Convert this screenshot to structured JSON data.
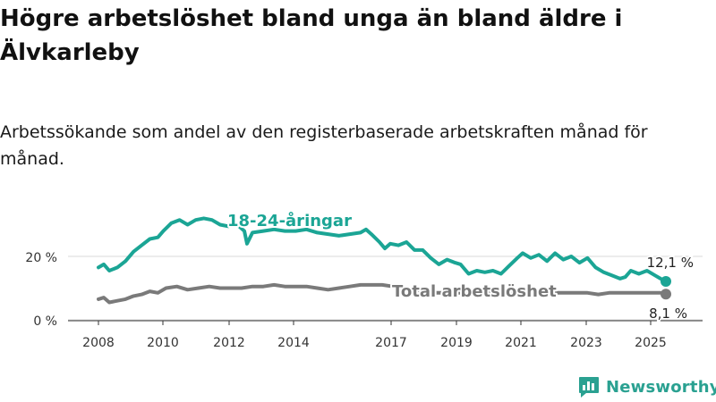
{
  "title": "Högre arbetslöshet bland unga än bland äldre i Älvkarleby",
  "subtitle": "Arbetssökande som andel av den registerbaserade arbetskraften månad för månad.",
  "brand": {
    "name": "Newsworthy",
    "icon": "newsworthy-bar-chart-icon"
  },
  "colors": {
    "youth": "#1ba595",
    "total": "#7a7a7a",
    "grid": "#d9d9d9",
    "brand": "#2aa191"
  },
  "chart_data": {
    "type": "line",
    "title": "Högre arbetslöshet bland unga än bland äldre i Älvkarleby",
    "subtitle": "Arbetssökande som andel av den registerbaserade arbetskraften månad för månad.",
    "xlabel": "",
    "ylabel": "",
    "x_ticks": [
      "2008",
      "2010",
      "2012",
      "2014",
      "2017",
      "2019",
      "2021",
      "2023",
      "2025"
    ],
    "y_ticks": [
      "0 %",
      "20 %"
    ],
    "xlim": [
      "2008-01",
      "2025-12"
    ],
    "ylim": [
      0,
      35
    ],
    "grid": true,
    "series": [
      {
        "name": "18-24-åringar",
        "color": "#1ba595",
        "end_label": "12,1 %",
        "end_value": 12.1,
        "points": [
          [
            "2008-01",
            16.5
          ],
          [
            "2008-03",
            17.5
          ],
          [
            "2008-05",
            15.5
          ],
          [
            "2008-08",
            16.5
          ],
          [
            "2008-11",
            18.5
          ],
          [
            "2009-02",
            21.5
          ],
          [
            "2009-05",
            23.5
          ],
          [
            "2009-08",
            25.5
          ],
          [
            "2009-11",
            26.0
          ],
          [
            "2010-01",
            28.0
          ],
          [
            "2010-04",
            30.5
          ],
          [
            "2010-07",
            31.5
          ],
          [
            "2010-10",
            30.0
          ],
          [
            "2011-01",
            31.5
          ],
          [
            "2011-04",
            32.0
          ],
          [
            "2011-07",
            31.5
          ],
          [
            "2011-10",
            30.0
          ],
          [
            "2012-01",
            29.5
          ],
          [
            "2012-03",
            30.0
          ],
          [
            "2012-05",
            29.5
          ],
          [
            "2012-07",
            28.0
          ],
          [
            "2012-08",
            24.0
          ],
          [
            "2012-10",
            27.5
          ],
          [
            "2013-02",
            28.0
          ],
          [
            "2013-06",
            28.5
          ],
          [
            "2013-10",
            28.0
          ],
          [
            "2014-02",
            28.0
          ],
          [
            "2014-06",
            28.5
          ],
          [
            "2014-10",
            27.5
          ],
          [
            "2015-02",
            27.0
          ],
          [
            "2015-06",
            26.5
          ],
          [
            "2015-10",
            27.0
          ],
          [
            "2016-02",
            27.5
          ],
          [
            "2016-04",
            28.5
          ],
          [
            "2016-06",
            27.0
          ],
          [
            "2016-09",
            24.5
          ],
          [
            "2016-11",
            22.5
          ],
          [
            "2017-01",
            24.0
          ],
          [
            "2017-04",
            23.5
          ],
          [
            "2017-07",
            24.5
          ],
          [
            "2017-10",
            22.0
          ],
          [
            "2018-01",
            22.0
          ],
          [
            "2018-04",
            19.5
          ],
          [
            "2018-07",
            17.5
          ],
          [
            "2018-10",
            19.0
          ],
          [
            "2019-01",
            18.0
          ],
          [
            "2019-03",
            17.5
          ],
          [
            "2019-06",
            14.5
          ],
          [
            "2019-09",
            15.5
          ],
          [
            "2019-12",
            15.0
          ],
          [
            "2020-03",
            15.5
          ],
          [
            "2020-06",
            14.5
          ],
          [
            "2020-09",
            17.0
          ],
          [
            "2020-12",
            19.5
          ],
          [
            "2021-02",
            21.0
          ],
          [
            "2021-05",
            19.5
          ],
          [
            "2021-08",
            20.5
          ],
          [
            "2021-11",
            18.5
          ],
          [
            "2022-02",
            21.0
          ],
          [
            "2022-05",
            19.0
          ],
          [
            "2022-08",
            20.0
          ],
          [
            "2022-11",
            18.0
          ],
          [
            "2023-02",
            19.5
          ],
          [
            "2023-05",
            16.5
          ],
          [
            "2023-08",
            15.0
          ],
          [
            "2023-11",
            14.0
          ],
          [
            "2024-02",
            13.0
          ],
          [
            "2024-04",
            13.5
          ],
          [
            "2024-06",
            15.5
          ],
          [
            "2024-09",
            14.5
          ],
          [
            "2024-12",
            15.5
          ],
          [
            "2025-03",
            14.0
          ],
          [
            "2025-05",
            13.0
          ],
          [
            "2025-07",
            12.1
          ]
        ]
      },
      {
        "name": "Total arbetslöshet",
        "color": "#7a7a7a",
        "end_label": "8,1 %",
        "end_value": 8.1,
        "points": [
          [
            "2008-01",
            6.5
          ],
          [
            "2008-03",
            7.0
          ],
          [
            "2008-05",
            5.5
          ],
          [
            "2008-08",
            6.0
          ],
          [
            "2008-11",
            6.5
          ],
          [
            "2009-02",
            7.5
          ],
          [
            "2009-05",
            8.0
          ],
          [
            "2009-08",
            9.0
          ],
          [
            "2009-11",
            8.5
          ],
          [
            "2010-02",
            10.0
          ],
          [
            "2010-06",
            10.5
          ],
          [
            "2010-10",
            9.5
          ],
          [
            "2011-02",
            10.0
          ],
          [
            "2011-06",
            10.5
          ],
          [
            "2011-10",
            10.0
          ],
          [
            "2012-02",
            10.0
          ],
          [
            "2012-06",
            10.0
          ],
          [
            "2012-10",
            10.5
          ],
          [
            "2013-02",
            10.5
          ],
          [
            "2013-06",
            11.0
          ],
          [
            "2013-10",
            10.5
          ],
          [
            "2014-02",
            10.5
          ],
          [
            "2014-06",
            10.5
          ],
          [
            "2014-10",
            10.0
          ],
          [
            "2015-02",
            9.5
          ],
          [
            "2015-06",
            10.0
          ],
          [
            "2015-10",
            10.5
          ],
          [
            "2016-02",
            11.0
          ],
          [
            "2016-06",
            11.0
          ],
          [
            "2016-10",
            11.0
          ],
          [
            "2017-02",
            10.5
          ],
          [
            "2017-06",
            10.0
          ],
          [
            "2017-10",
            9.5
          ],
          [
            "2018-02",
            9.0
          ],
          [
            "2018-06",
            8.5
          ],
          [
            "2018-10",
            8.5
          ],
          [
            "2019-02",
            8.5
          ],
          [
            "2019-06",
            8.5
          ],
          [
            "2019-10",
            8.5
          ],
          [
            "2020-02",
            8.5
          ],
          [
            "2020-06",
            9.0
          ],
          [
            "2020-10",
            9.0
          ],
          [
            "2021-02",
            9.0
          ],
          [
            "2021-06",
            8.5
          ],
          [
            "2021-10",
            8.5
          ],
          [
            "2022-02",
            8.5
          ],
          [
            "2022-06",
            8.5
          ],
          [
            "2022-10",
            8.5
          ],
          [
            "2023-02",
            8.5
          ],
          [
            "2023-06",
            8.0
          ],
          [
            "2023-10",
            8.5
          ],
          [
            "2024-02",
            8.5
          ],
          [
            "2024-06",
            8.5
          ],
          [
            "2024-10",
            8.5
          ],
          [
            "2025-02",
            8.5
          ],
          [
            "2025-05",
            8.5
          ],
          [
            "2025-07",
            8.1
          ]
        ]
      }
    ]
  }
}
